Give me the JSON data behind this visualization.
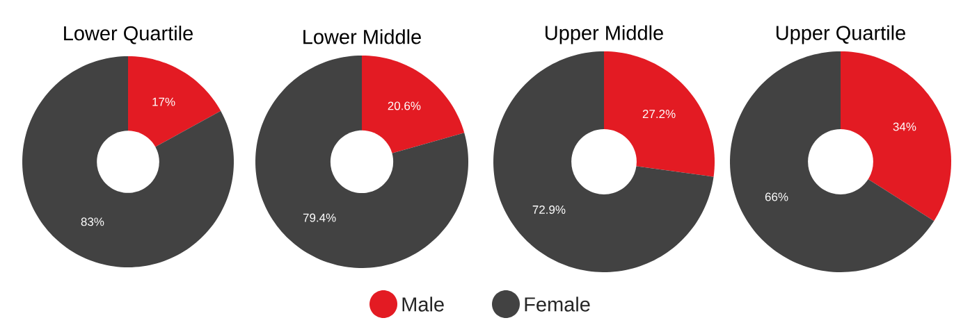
{
  "chart_data": [
    {
      "type": "donut",
      "title": "Lower Quartile",
      "categories": [
        "Male",
        "Female"
      ],
      "values": [
        17,
        83
      ],
      "colors": [
        "#e31b23",
        "#424242"
      ],
      "value_labels": [
        "17%",
        "83%"
      ],
      "legend": "bottom"
    },
    {
      "type": "donut",
      "title": "Lower Middle",
      "categories": [
        null,
        null
      ],
      "values": [
        20.6,
        79.4
      ],
      "colors": [
        "#e31b23",
        "#424242"
      ],
      "value_labels": [
        "20.6%",
        "79.4%"
      ]
    },
    {
      "type": "donut",
      "title": "Upper Middle",
      "categories": [
        null,
        null
      ],
      "values": [
        27.2,
        72.9
      ],
      "colors": [
        "#e31b23",
        "#424242"
      ],
      "value_labels": [
        "27.2%",
        "72.9%"
      ]
    },
    {
      "type": "donut",
      "title": "Upper Quartile",
      "categories": [
        null,
        null
      ],
      "values": [
        34,
        66
      ],
      "colors": [
        "#e31b23",
        "#424242"
      ],
      "value_labels": [
        "34%",
        "66%"
      ]
    }
  ]
}
